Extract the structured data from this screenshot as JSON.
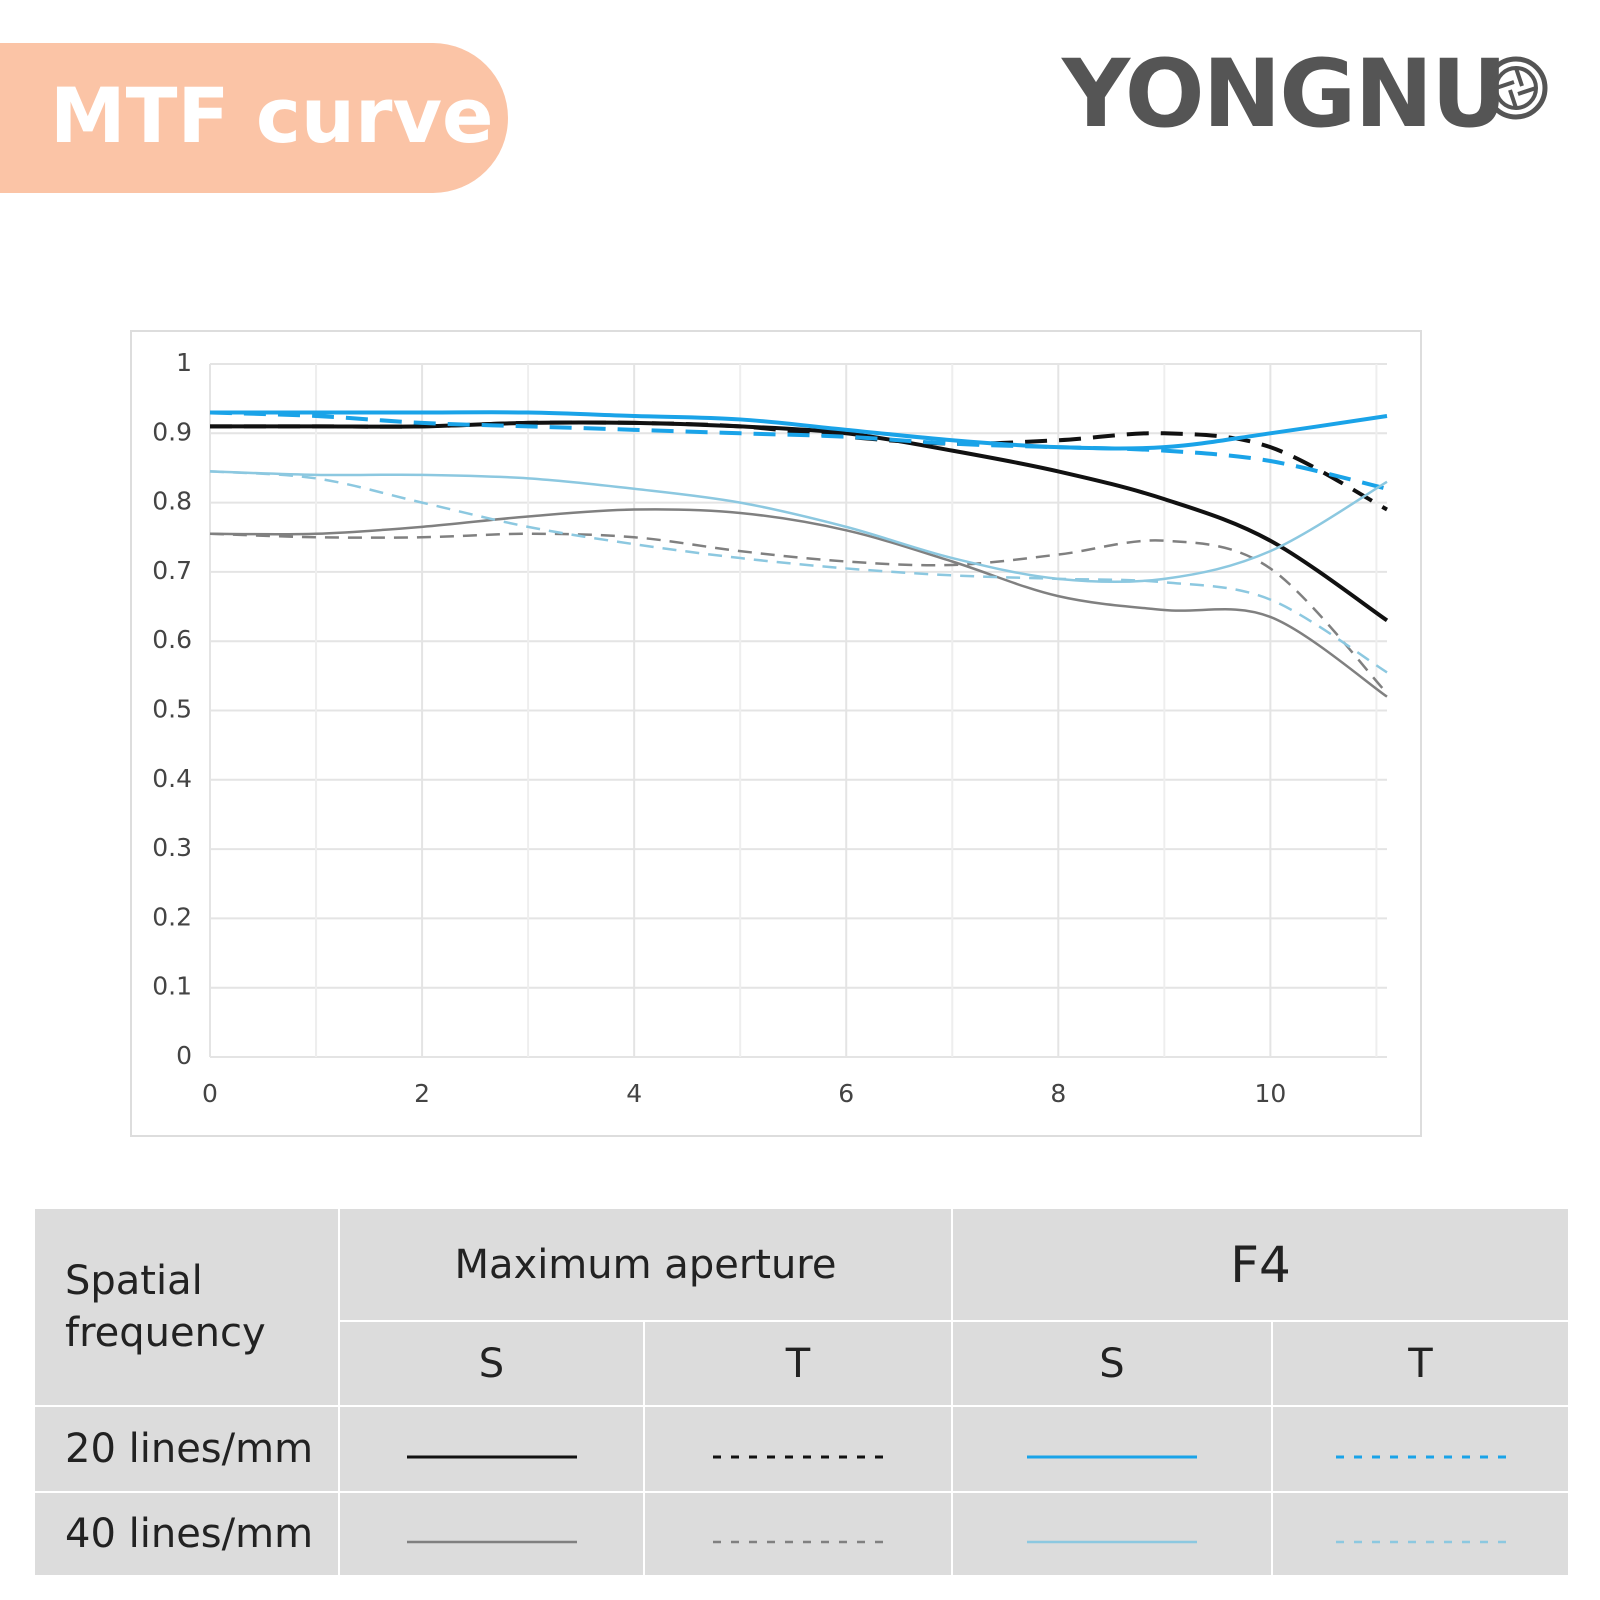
{
  "header": {
    "title": "MTF curve",
    "logo": "YONGNU"
  },
  "chart_data": {
    "type": "line",
    "x": [
      0,
      1,
      2,
      3,
      4,
      5,
      6,
      7,
      8,
      9,
      10,
      11.1
    ],
    "xlim": [
      0,
      11.1
    ],
    "xticks": [
      0,
      2,
      4,
      6,
      8,
      10
    ],
    "minor_xticks": [
      1,
      3,
      5,
      7,
      9,
      11
    ],
    "ylim": [
      0,
      1
    ],
    "yticks": [
      0,
      0.1,
      0.2,
      0.3,
      0.4,
      0.5,
      0.6,
      0.7,
      0.8,
      0.9,
      1
    ],
    "grid": true,
    "series": [
      {
        "color": "#111111",
        "dash": false,
        "width": 4,
        "values": [
          0.91,
          0.91,
          0.91,
          0.915,
          0.915,
          0.91,
          0.9,
          0.875,
          0.845,
          0.805,
          0.745,
          0.63
        ]
      },
      {
        "color": "#111111",
        "dash": true,
        "width": 4,
        "values": [
          0.91,
          0.91,
          0.91,
          0.915,
          0.915,
          0.91,
          0.895,
          0.885,
          0.89,
          0.9,
          0.88,
          0.79
        ]
      },
      {
        "color": "#1aa3e8",
        "dash": false,
        "width": 4,
        "values": [
          0.93,
          0.93,
          0.93,
          0.93,
          0.925,
          0.92,
          0.905,
          0.89,
          0.88,
          0.88,
          0.9,
          0.925
        ]
      },
      {
        "color": "#1aa3e8",
        "dash": true,
        "width": 4,
        "values": [
          0.93,
          0.925,
          0.915,
          0.91,
          0.905,
          0.9,
          0.895,
          0.885,
          0.88,
          0.875,
          0.86,
          0.82
        ]
      },
      {
        "color": "#808080",
        "dash": false,
        "width": 2.5,
        "values": [
          0.755,
          0.755,
          0.765,
          0.78,
          0.79,
          0.785,
          0.76,
          0.715,
          0.665,
          0.645,
          0.635,
          0.52
        ]
      },
      {
        "color": "#808080",
        "dash": true,
        "width": 2.5,
        "values": [
          0.755,
          0.75,
          0.75,
          0.755,
          0.75,
          0.73,
          0.715,
          0.71,
          0.725,
          0.745,
          0.705,
          0.525
        ]
      },
      {
        "color": "#8cc8e0",
        "dash": false,
        "width": 2.5,
        "values": [
          0.845,
          0.84,
          0.84,
          0.835,
          0.82,
          0.8,
          0.765,
          0.72,
          0.69,
          0.69,
          0.73,
          0.83
        ]
      },
      {
        "color": "#8cc8e0",
        "dash": true,
        "width": 2.5,
        "values": [
          0.845,
          0.835,
          0.8,
          0.765,
          0.74,
          0.72,
          0.705,
          0.695,
          0.69,
          0.685,
          0.66,
          0.555
        ]
      }
    ]
  },
  "table": {
    "header": [
      "Spatial frequency",
      "Maximum aperture",
      "F4"
    ],
    "subheader": [
      "S",
      "T",
      "S",
      "T"
    ],
    "rows": [
      "20 lines/mm",
      "40 lines/mm"
    ]
  }
}
